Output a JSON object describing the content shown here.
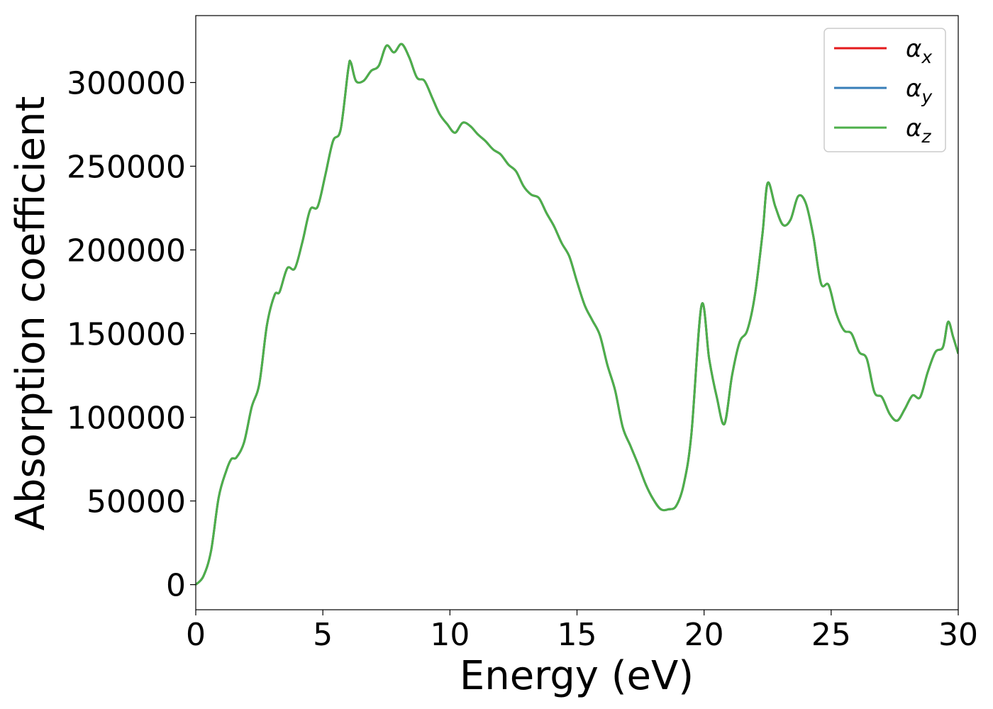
{
  "chart_data": {
    "type": "line",
    "title": "",
    "xlabel": "Energy (eV)",
    "ylabel": "Absorption coefficient",
    "xlim": [
      0,
      30
    ],
    "ylim": [
      -15000,
      340000
    ],
    "xticks": [
      0,
      5,
      10,
      15,
      20,
      25,
      30
    ],
    "xtick_labels": [
      "0",
      "5",
      "10",
      "15",
      "20",
      "25",
      "30"
    ],
    "yticks": [
      0,
      50000,
      100000,
      150000,
      200000,
      250000,
      300000
    ],
    "ytick_labels": [
      "0",
      "50000",
      "100000",
      "150000",
      "200000",
      "250000",
      "300000"
    ],
    "grid": false,
    "legend_position": "top-right",
    "x": [
      0,
      0.3,
      0.6,
      0.9,
      1.2,
      1.4,
      1.6,
      1.9,
      2.2,
      2.5,
      2.8,
      3.1,
      3.3,
      3.6,
      3.9,
      4.2,
      4.5,
      4.8,
      5.1,
      5.4,
      5.7,
      6.0,
      6.1,
      6.3,
      6.6,
      6.9,
      7.2,
      7.5,
      7.8,
      8.1,
      8.4,
      8.7,
      9.0,
      9.3,
      9.6,
      9.9,
      10.2,
      10.5,
      10.8,
      11.1,
      11.4,
      11.7,
      12.0,
      12.3,
      12.6,
      12.9,
      13.2,
      13.5,
      13.8,
      14.1,
      14.4,
      14.7,
      15.0,
      15.3,
      15.6,
      15.9,
      16.2,
      16.5,
      16.8,
      17.1,
      17.4,
      17.7,
      18.0,
      18.3,
      18.6,
      18.9,
      19.2,
      19.5,
      19.9,
      20.2,
      20.5,
      20.8,
      21.1,
      21.4,
      21.7,
      22.0,
      22.3,
      22.5,
      22.8,
      23.1,
      23.4,
      23.7,
      24.0,
      24.3,
      24.6,
      24.9,
      25.2,
      25.5,
      25.8,
      26.1,
      26.4,
      26.7,
      27.0,
      27.3,
      27.6,
      27.9,
      28.2,
      28.5,
      28.8,
      29.1,
      29.4,
      29.6,
      29.8,
      30.0
    ],
    "series": [
      {
        "name": "α_x",
        "color": "#e41a1c",
        "values": [
          0,
          5000,
          20000,
          52000,
          68000,
          75000,
          76000,
          85000,
          106000,
          120000,
          155000,
          173000,
          175000,
          189000,
          189000,
          205000,
          224000,
          226000,
          245000,
          265000,
          272000,
          308000,
          312000,
          301000,
          301000,
          307000,
          310000,
          322000,
          318000,
          323000,
          315000,
          303000,
          301000,
          291000,
          281000,
          275000,
          270000,
          276000,
          274000,
          269000,
          265000,
          260000,
          257000,
          251000,
          247000,
          238000,
          233000,
          231000,
          222000,
          214000,
          204000,
          196000,
          181000,
          167000,
          158000,
          149000,
          131000,
          116000,
          94000,
          83000,
          72000,
          60000,
          51000,
          45000,
          45000,
          47000,
          60000,
          90000,
          167000,
          135000,
          112000,
          96000,
          125000,
          145000,
          152000,
          173000,
          210000,
          240000,
          226000,
          215000,
          218000,
          232000,
          228000,
          208000,
          180000,
          179000,
          162000,
          152000,
          150000,
          139000,
          135000,
          115000,
          112000,
          102000,
          98000,
          105000,
          113000,
          112000,
          127000,
          139000,
          142000,
          157000,
          148000,
          138000
        ]
      },
      {
        "name": "α_y",
        "color": "#377eb8",
        "values": [
          0,
          5000,
          20000,
          52000,
          68000,
          75000,
          76000,
          85000,
          106000,
          120000,
          155000,
          173000,
          175000,
          189000,
          189000,
          205000,
          224000,
          226000,
          245000,
          265000,
          272000,
          308000,
          312000,
          301000,
          301000,
          307000,
          310000,
          322000,
          318000,
          323000,
          315000,
          303000,
          301000,
          291000,
          281000,
          275000,
          270000,
          276000,
          274000,
          269000,
          265000,
          260000,
          257000,
          251000,
          247000,
          238000,
          233000,
          231000,
          222000,
          214000,
          204000,
          196000,
          181000,
          167000,
          158000,
          149000,
          131000,
          116000,
          94000,
          83000,
          72000,
          60000,
          51000,
          45000,
          45000,
          47000,
          60000,
          90000,
          167000,
          135000,
          112000,
          96000,
          125000,
          145000,
          152000,
          173000,
          210000,
          240000,
          226000,
          215000,
          218000,
          232000,
          228000,
          208000,
          180000,
          179000,
          162000,
          152000,
          150000,
          139000,
          135000,
          115000,
          112000,
          102000,
          98000,
          105000,
          113000,
          112000,
          127000,
          139000,
          142000,
          157000,
          148000,
          138000
        ]
      },
      {
        "name": "α_z",
        "color": "#4daf4a",
        "values": [
          0,
          5000,
          20000,
          52000,
          68000,
          75000,
          76000,
          85000,
          106000,
          120000,
          155000,
          173000,
          175000,
          189000,
          189000,
          205000,
          224000,
          226000,
          245000,
          265000,
          272000,
          308000,
          312000,
          301000,
          301000,
          307000,
          310000,
          322000,
          318000,
          323000,
          315000,
          303000,
          301000,
          291000,
          281000,
          275000,
          270000,
          276000,
          274000,
          269000,
          265000,
          260000,
          257000,
          251000,
          247000,
          238000,
          233000,
          231000,
          222000,
          214000,
          204000,
          196000,
          181000,
          167000,
          158000,
          149000,
          131000,
          116000,
          94000,
          83000,
          72000,
          60000,
          51000,
          45000,
          45000,
          47000,
          60000,
          90000,
          167000,
          135000,
          112000,
          96000,
          125000,
          145000,
          152000,
          173000,
          210000,
          240000,
          226000,
          215000,
          218000,
          232000,
          228000,
          208000,
          180000,
          179000,
          162000,
          152000,
          150000,
          139000,
          135000,
          115000,
          112000,
          102000,
          98000,
          105000,
          113000,
          112000,
          127000,
          139000,
          142000,
          157000,
          148000,
          138000
        ]
      }
    ]
  }
}
